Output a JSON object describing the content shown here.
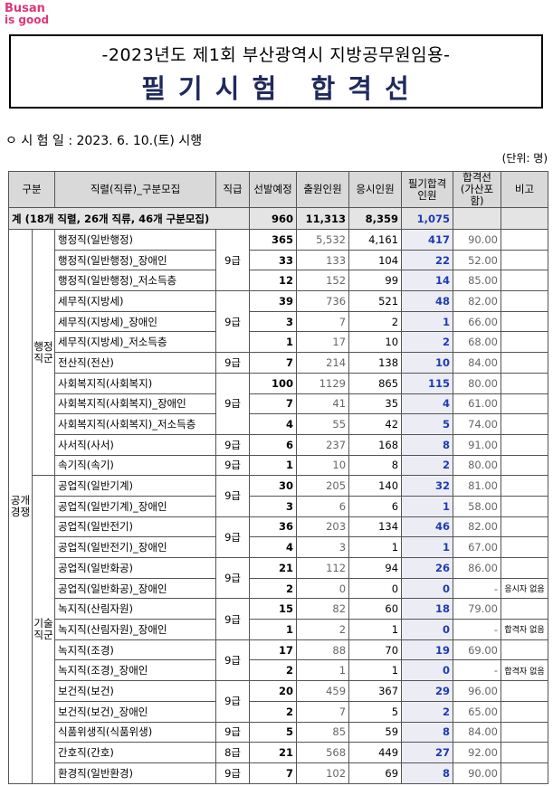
{
  "logo": {
    "name": "Busan",
    "tagline": "is good"
  },
  "header": {
    "title": "-2023년도 제1회 부산광역시 지방공무원임용-",
    "subtitle": "필 기 시 험   합 격 선"
  },
  "exam_date": "ㅇ 시 험 일 : 2023. 6. 10.(토) 시행",
  "unit": "(단위: 명)",
  "table": {
    "columns": [
      "구분",
      "직렬(직류)_구분모집",
      "직급",
      "선발예정",
      "출원인원",
      "응시인원",
      "필기합격 인원",
      "합격선 (가산포함)",
      "비고"
    ],
    "total": {
      "label": "계 (18개 직렬, 26개 직류, 46개 구분모집)",
      "values": [
        "960",
        "11,313",
        "8,359",
        "1,075"
      ]
    },
    "category": "공개 경쟁",
    "sections": [
      {
        "label": "행정 직군",
        "blocks": [
          {
            "grade": "9급",
            "rows": [
              [
                "행정직(일반행정)",
                "365",
                "5,532",
                "4,161",
                "417",
                "90.00"
              ],
              [
                "행정직(일반행정)_장애인",
                "33",
                "133",
                "104",
                "22",
                "52.00"
              ],
              [
                "행정직(일반행정)_저소득층",
                "12",
                "152",
                "99",
                "14",
                "85.00"
              ]
            ]
          },
          {
            "grade": "9급",
            "rows": [
              [
                "세무직(지방세)",
                "39",
                "736",
                "521",
                "48",
                "82.00"
              ],
              [
                "세무직(지방세)_장애인",
                "3",
                "7",
                "2",
                "1",
                "66.00"
              ],
              [
                "세무직(지방세)_저소득층",
                "1",
                "17",
                "10",
                "2",
                "68.00"
              ]
            ]
          },
          {
            "grade": "9급",
            "rows": [
              [
                "전산직(전산)",
                "7",
                "214",
                "138",
                "10",
                "84.00"
              ]
            ]
          },
          {
            "grade": "9급",
            "rows": [
              [
                "사회복지직(사회복지)",
                "100",
                "1129",
                "865",
                "115",
                "80.00"
              ],
              [
                "사회복지직(사회복지)_장애인",
                "7",
                "41",
                "35",
                "4",
                "61.00"
              ],
              [
                "사회복지직(사회복지)_저소득층",
                "4",
                "55",
                "42",
                "5",
                "74.00"
              ]
            ]
          },
          {
            "grade": "9급",
            "rows": [
              [
                "사서직(사서)",
                "6",
                "237",
                "168",
                "8",
                "91.00"
              ]
            ]
          },
          {
            "grade": "9급",
            "rows": [
              [
                "속기직(속기)",
                "1",
                "10",
                "8",
                "2",
                "80.00"
              ]
            ]
          }
        ]
      },
      {
        "label": "기술 직군",
        "blocks": [
          {
            "grade": "9급",
            "rows": [
              [
                "공업직(일반기계)",
                "30",
                "205",
                "140",
                "32",
                "81.00"
              ],
              [
                "공업직(일반기계)_장애인",
                "3",
                "6",
                "6",
                "1",
                "58.00"
              ]
            ]
          },
          {
            "grade": "9급",
            "rows": [
              [
                "공업직(일반전기)",
                "36",
                "203",
                "134",
                "46",
                "82.00"
              ],
              [
                "공업직(일반전기)_장애인",
                "4",
                "3",
                "1",
                "1",
                "67.00"
              ]
            ]
          },
          {
            "grade": "9급",
            "rows": [
              [
                "공업직(일반화공)",
                "21",
                "112",
                "94",
                "26",
                "86.00"
              ],
              [
                "공업직(일반화공)_장애인",
                "2",
                "0",
                "0",
                "0",
                "-",
                "응시자 없음"
              ]
            ]
          },
          {
            "grade": "9급",
            "rows": [
              [
                "녹지직(산림자원)",
                "15",
                "82",
                "60",
                "18",
                "79.00"
              ],
              [
                "녹지직(산림자원)_장애인",
                "1",
                "2",
                "1",
                "0",
                "-",
                "합격자 없음"
              ]
            ]
          },
          {
            "grade": "9급",
            "rows": [
              [
                "녹지직(조경)",
                "17",
                "88",
                "70",
                "19",
                "69.00"
              ],
              [
                "녹지직(조경)_장애인",
                "2",
                "1",
                "1",
                "0",
                "-",
                "합격자 없음"
              ]
            ]
          },
          {
            "grade": "9급",
            "rows": [
              [
                "보건직(보건)",
                "20",
                "459",
                "367",
                "29",
                "96.00"
              ],
              [
                "보건직(보건)_장애인",
                "2",
                "7",
                "5",
                "2",
                "65.00"
              ]
            ]
          },
          {
            "grade": "9급",
            "rows": [
              [
                "식품위생직(식품위생)",
                "5",
                "85",
                "59",
                "8",
                "84.00"
              ]
            ]
          },
          {
            "grade": "8급",
            "rows": [
              [
                "간호직(간호)",
                "21",
                "568",
                "449",
                "27",
                "92.00"
              ]
            ]
          },
          {
            "grade": "9급",
            "rows": [
              [
                "환경직(일반환경)",
                "7",
                "102",
                "69",
                "8",
                "90.00"
              ]
            ]
          }
        ]
      }
    ]
  }
}
